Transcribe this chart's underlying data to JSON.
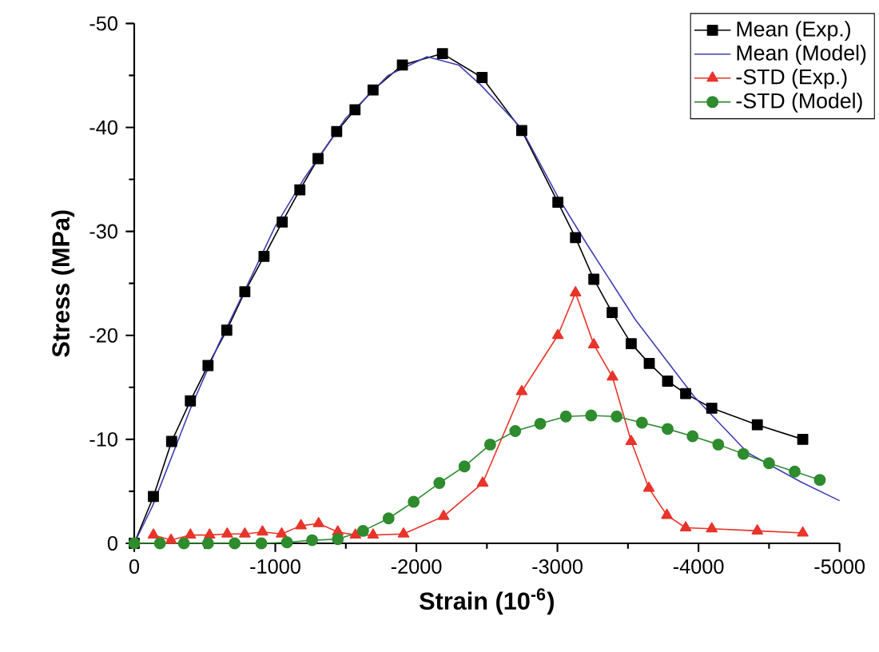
{
  "chart_data": {
    "type": "line",
    "xlabel": "Strain (10$^{-6}$)",
    "ylabel": "Stress (MPa)",
    "xlim": [
      0,
      -5000
    ],
    "ylim": [
      0,
      -50
    ],
    "xticks": [
      0,
      -1000,
      -2000,
      -3000,
      -4000,
      -5000
    ],
    "yticks": [
      0,
      -10,
      -20,
      -30,
      -40,
      -50
    ],
    "legend": "top right",
    "series": [
      {
        "name": "Mean (Exp.)",
        "color": "#000000",
        "marker": "square",
        "x": [
          0,
          -136,
          -265,
          -398,
          -523,
          -656,
          -784,
          -920,
          -1049,
          -1174,
          -1303,
          -1435,
          -1565,
          -1693,
          -1901,
          -2185,
          -2466,
          -2747,
          -3003,
          -3128,
          -3258,
          -3388,
          -3523,
          -3651,
          -3781,
          -3909,
          -4094,
          -4417,
          -4739
        ],
        "values": [
          0,
          -4.5,
          -9.8,
          -13.7,
          -17.1,
          -20.5,
          -24.2,
          -27.6,
          -30.9,
          -34.0,
          -37.0,
          -39.6,
          -41.7,
          -43.6,
          -46.0,
          -47.1,
          -44.8,
          -39.7,
          -32.8,
          -29.4,
          -25.4,
          -22.2,
          -19.2,
          -17.3,
          -15.6,
          -14.4,
          -13.0,
          -11.4,
          -10.0
        ]
      },
      {
        "name": "Mean (Model)",
        "color": "#3f3fb4",
        "marker": "none",
        "x": [
          0,
          -130,
          -400,
          -600,
          -800,
          -1000,
          -1200,
          -1500,
          -1800,
          -2076,
          -2300,
          -2455,
          -2739,
          -3004,
          -3212,
          -3553,
          -3970,
          -4349,
          -4727,
          -5000
        ],
        "values": [
          0,
          -3.6,
          -13.0,
          -19.2,
          -24.8,
          -30.5,
          -35.0,
          -40.9,
          -45.0,
          -46.8,
          -46.0,
          -44.1,
          -40.0,
          -33.3,
          -28.7,
          -21.5,
          -14.1,
          -8.7,
          -5.9,
          -4.1
        ]
      },
      {
        "name": "-STD (Exp.)",
        "color": "#e8342a",
        "marker": "triangle",
        "x": [
          -136,
          -261,
          -398,
          -534,
          -659,
          -784,
          -909,
          -1045,
          -1182,
          -1307,
          -1443,
          -1568,
          -1693,
          -1909,
          -2193,
          -2470,
          -2747,
          -3003,
          -3128,
          -3258,
          -3390,
          -3523,
          -3648,
          -3776,
          -3909,
          -4094,
          -4417,
          -4739
        ],
        "values": [
          -0.8,
          -0.3,
          -0.8,
          -0.8,
          -0.9,
          -0.9,
          -1.1,
          -0.9,
          -1.7,
          -1.9,
          -1.1,
          -0.8,
          -0.8,
          -0.9,
          -2.6,
          -5.8,
          -14.6,
          -20.0,
          -24.1,
          -19.1,
          -16.0,
          -9.8,
          -5.3,
          -2.7,
          -1.5,
          -1.4,
          -1.2,
          -1.0
        ]
      },
      {
        "name": "-STD (Model)",
        "color": "#2e8b2e",
        "marker": "circle",
        "x": [
          0,
          -182,
          -352,
          -523,
          -712,
          -901,
          -1083,
          -1261,
          -1443,
          -1622,
          -1803,
          -1981,
          -2163,
          -2341,
          -2523,
          -2701,
          -2878,
          -3060,
          -3239,
          -3420,
          -3599,
          -3781,
          -3958,
          -4140,
          -4318,
          -4500,
          -4682,
          -4860
        ],
        "values": [
          0,
          0,
          0,
          0,
          0,
          0,
          -0.1,
          -0.3,
          -0.4,
          -1.2,
          -2.4,
          -4.0,
          -5.8,
          -7.4,
          -9.5,
          -10.8,
          -11.5,
          -12.2,
          -12.3,
          -12.2,
          -11.6,
          -11.0,
          -10.3,
          -9.5,
          -8.6,
          -7.7,
          -6.9,
          -6.1
        ]
      }
    ]
  }
}
